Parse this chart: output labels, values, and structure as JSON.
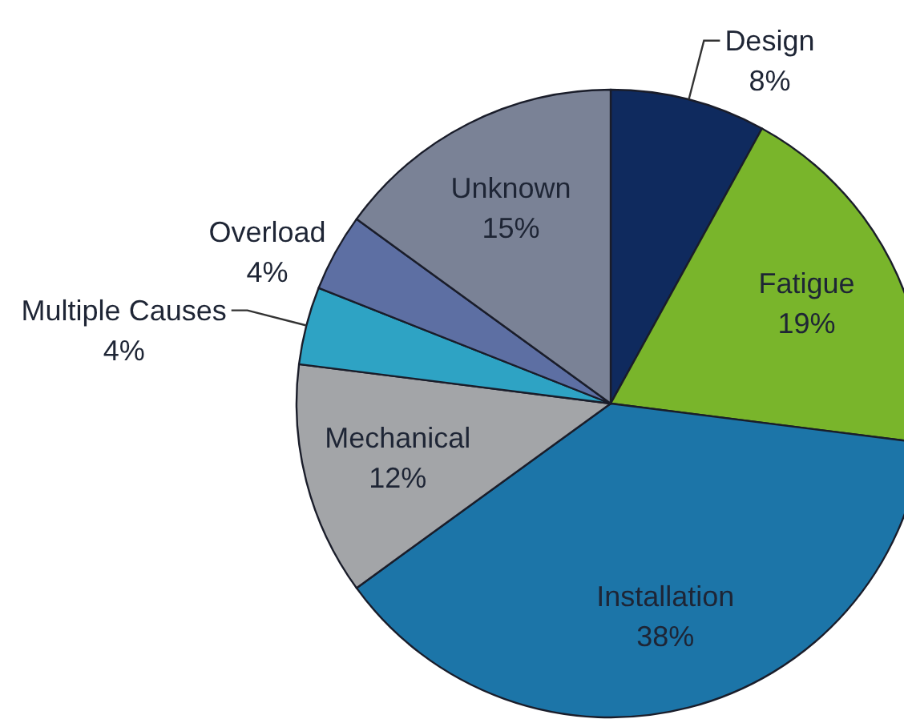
{
  "chart_data": {
    "type": "pie",
    "categories": [
      "Design",
      "Fatigue",
      "Installation",
      "Mechanical",
      "Multiple Causes",
      "Overload",
      "Unknown"
    ],
    "values": [
      8,
      19,
      38,
      12,
      4,
      4,
      15
    ],
    "value_labels": [
      "8%",
      "19%",
      "38%",
      "12%",
      "4%",
      "4%",
      "15%"
    ],
    "colors": [
      "#0f2a5e",
      "#79b52b",
      "#1c75a8",
      "#a3a5a8",
      "#2ea3c4",
      "#5d6fa3",
      "#7a8296"
    ]
  }
}
